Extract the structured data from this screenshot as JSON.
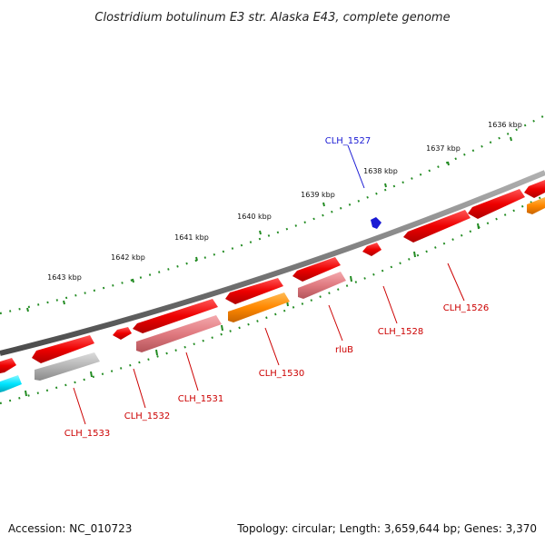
{
  "title": "Clostridium botulinum E3 str. Alaska E43, complete genome",
  "footer": {
    "accession": "Accession: NC_010723",
    "summary": "Topology: circular; Length: 3,659,644 bp; Genes: 3,370"
  },
  "ruler": {
    "tick_labels": [
      "1636 kbp",
      "1637 kbp",
      "1638 kbp",
      "1639 kbp",
      "1640 kbp",
      "1641 kbp",
      "1642 kbp",
      "1643 kbp"
    ]
  },
  "genes": {
    "labels": [
      "CLH_1527",
      "CLH_1526",
      "CLH_1528",
      "rluB",
      "CLH_1530",
      "CLH_1531",
      "CLH_1532",
      "CLH_1533"
    ]
  },
  "colors": {
    "cds_red": "#ee0000",
    "pseudo_pink": "#e07a80",
    "orange": "#ff8800",
    "grey": "#b0b0b0",
    "cyan": "#00e5ff",
    "label_red": "#cc0000",
    "label_blue": "#1a1ad4",
    "tick_green": "#228b22",
    "backbone": "#7a7a7a"
  }
}
